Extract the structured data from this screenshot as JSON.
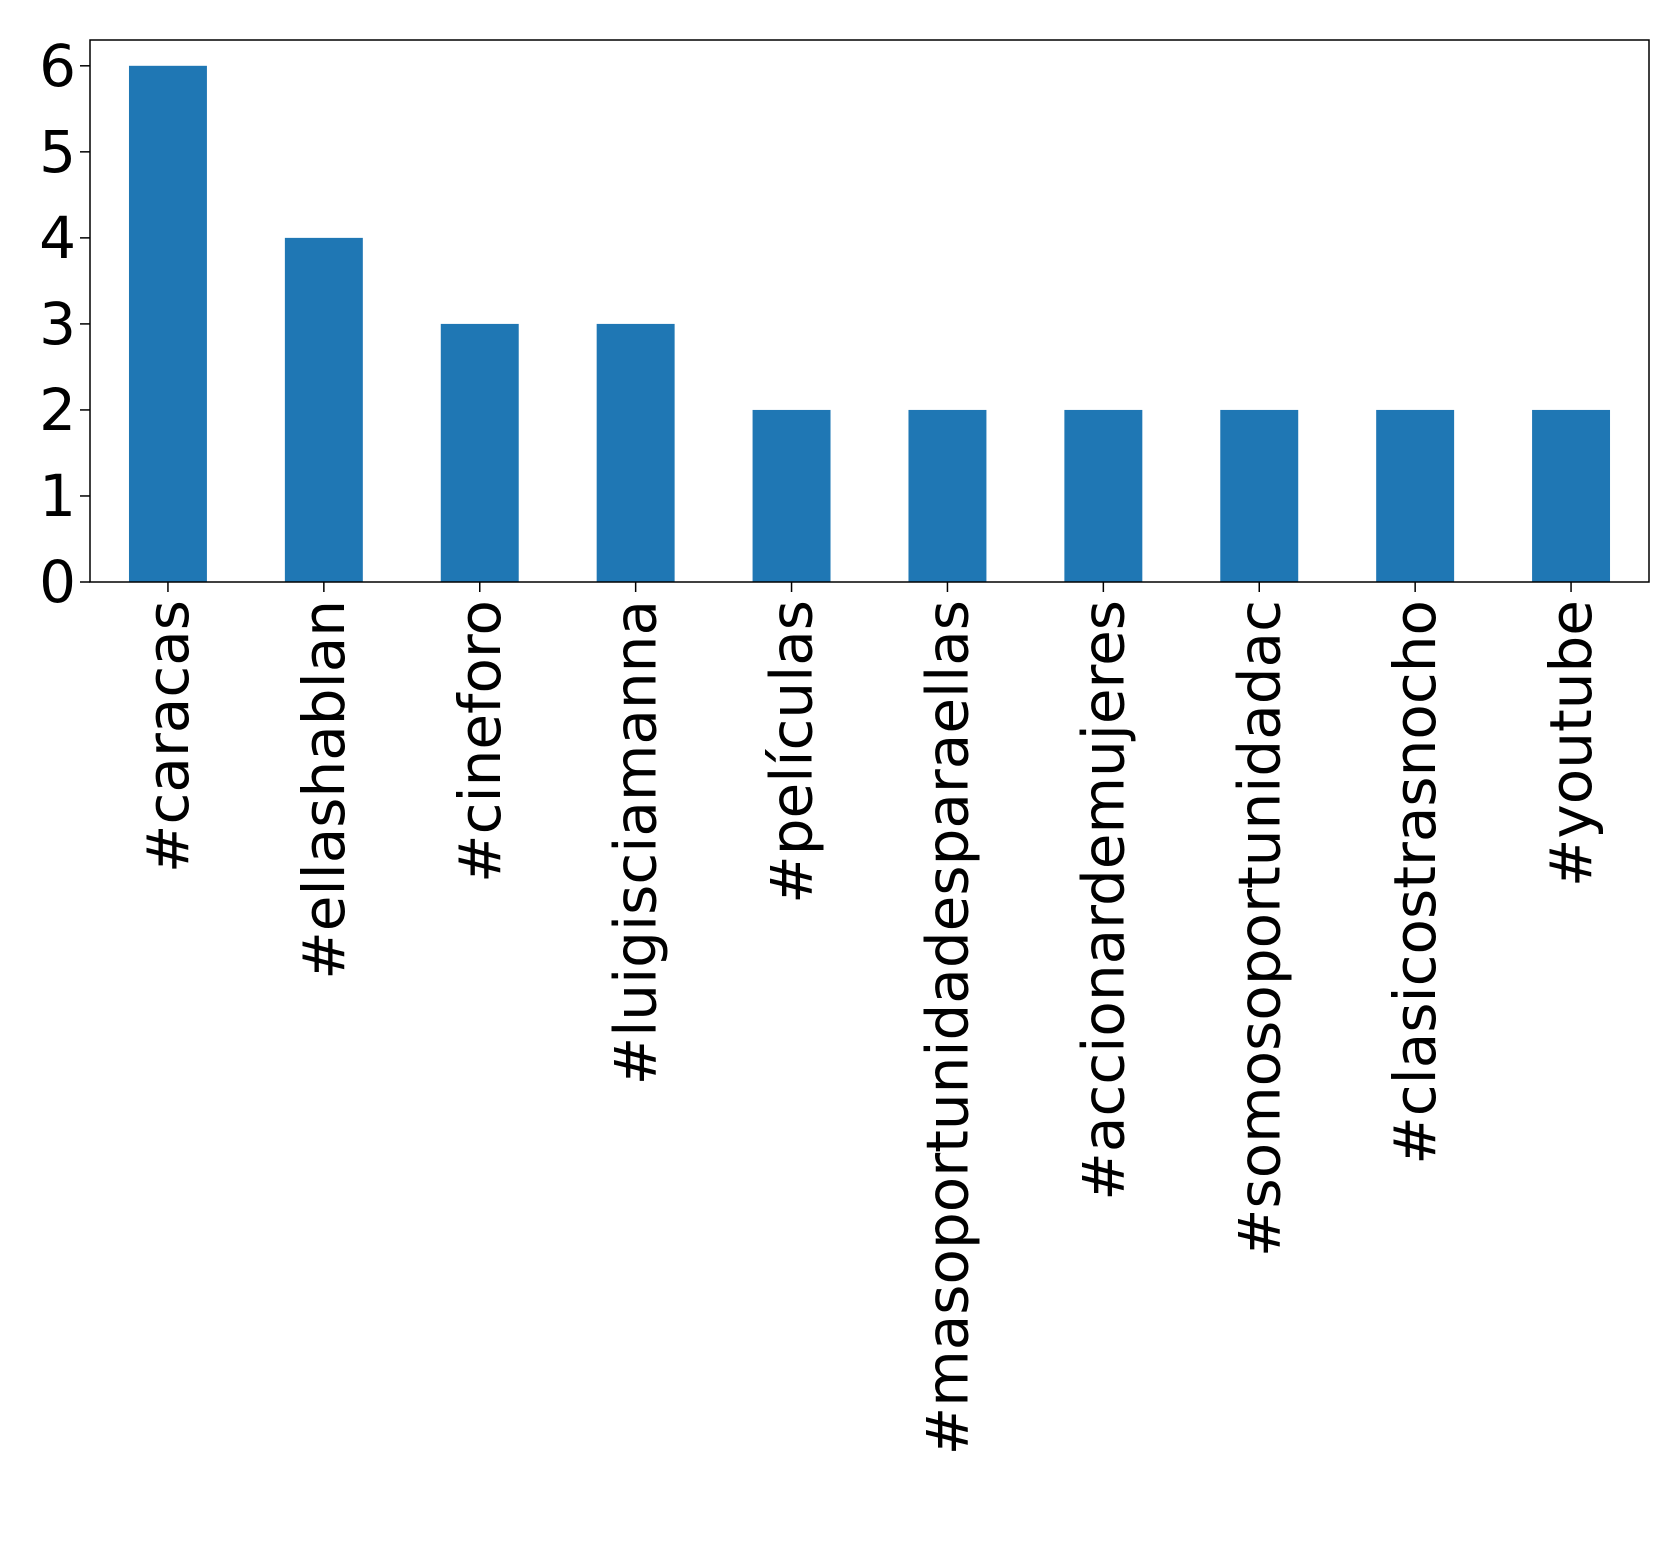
{
  "chart_data": {
    "type": "bar",
    "categories": [
      "#caracas",
      "#ellashablan",
      "#cineforo",
      "#luigisciamanna",
      "#películas",
      "#masoportunidadesparaellas",
      "#accionardemujeres",
      "#somosoportunidadac",
      "#clasicostrasnocho",
      "#youtube"
    ],
    "values": [
      6,
      4,
      3,
      3,
      2,
      2,
      2,
      2,
      2,
      2
    ],
    "yticks": [
      "0",
      "1",
      "2",
      "3",
      "4",
      "5",
      "6"
    ],
    "ylim": [
      0,
      6.3
    ],
    "title": "",
    "xlabel": "",
    "ylabel": "",
    "grid": false,
    "bar_color": "#1f77b4"
  }
}
